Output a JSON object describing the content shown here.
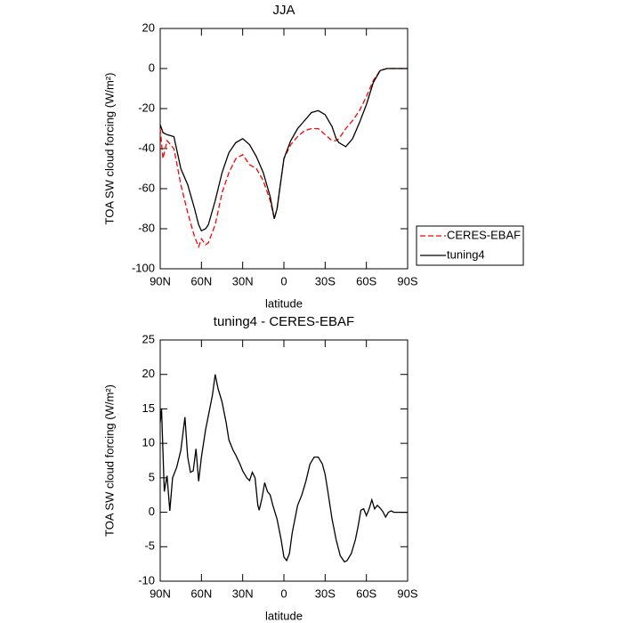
{
  "chart_data": [
    {
      "type": "line",
      "title": "JJA",
      "ylabel": "TOA SW cloud forcing (W/m²)",
      "xlabel": "latitude",
      "x": [
        90,
        88,
        85,
        80,
        75,
        70,
        65,
        62,
        60,
        57,
        55,
        50,
        45,
        40,
        35,
        30,
        25,
        20,
        15,
        10,
        7,
        5,
        0,
        -5,
        -10,
        -15,
        -20,
        -25,
        -30,
        -35,
        -38,
        -40,
        -45,
        -50,
        -55,
        -60,
        -65,
        -70,
        -75,
        -80,
        -85,
        -90
      ],
      "series": [
        {
          "name": "CERES-EBAF",
          "color": "#ff0000",
          "style": "dashed",
          "values": [
            -30,
            -45,
            -36,
            -40,
            -58,
            -72,
            -84,
            -89,
            -85,
            -88,
            -87,
            -78,
            -62,
            -52,
            -45,
            -43,
            -48,
            -50,
            -56,
            -66,
            -75,
            -70,
            -45,
            -38,
            -34,
            -31,
            -30,
            -30,
            -33,
            -36,
            -36,
            -35,
            -30,
            -26,
            -21,
            -14,
            -6,
            -1,
            0,
            0,
            0,
            0
          ]
        },
        {
          "name": "tuning4",
          "color": "#000000",
          "style": "solid",
          "values": [
            -28,
            -32,
            -33,
            -34,
            -50,
            -58,
            -70,
            -78,
            -81,
            -80,
            -78,
            -66,
            -52,
            -42,
            -37,
            -35,
            -38,
            -44,
            -52,
            -64,
            -75,
            -70,
            -45,
            -36,
            -30,
            -26,
            -22,
            -21,
            -23,
            -29,
            -35,
            -37,
            -39,
            -35,
            -27,
            -18,
            -7,
            -1,
            0,
            0,
            0,
            0
          ]
        }
      ],
      "xlim": [
        90,
        -90
      ],
      "xticks": [
        {
          "value": 90,
          "label": "90N"
        },
        {
          "value": 60,
          "label": "60N"
        },
        {
          "value": 30,
          "label": "30N"
        },
        0,
        {
          "value": -30,
          "label": "30S"
        },
        {
          "value": -60,
          "label": "60S"
        },
        {
          "value": -90,
          "label": "90S"
        }
      ],
      "ylim": [
        -100,
        20
      ],
      "yticks": [
        20,
        0,
        -20,
        -40,
        -60,
        -80,
        -100
      ],
      "legend": "right"
    },
    {
      "type": "line",
      "title": "tuning4 - CERES-EBAF",
      "ylabel": "TOA SW cloud forcing (W/m²)",
      "xlabel": "latitude",
      "x": [
        90,
        89,
        87,
        85,
        83,
        81,
        78,
        75,
        72,
        70,
        68,
        66,
        64,
        62,
        60,
        57,
        55,
        52,
        50,
        48,
        45,
        42,
        40,
        37,
        35,
        32,
        30,
        27,
        25,
        23,
        21,
        19,
        18,
        16,
        14,
        12,
        10,
        8,
        5,
        2,
        0,
        -2,
        -4,
        -6,
        -10,
        -13,
        -16,
        -19,
        -22,
        -25,
        -28,
        -30,
        -32,
        -35,
        -38,
        -41,
        -44,
        -46,
        -49,
        -52,
        -54,
        -56,
        -58,
        -60,
        -62,
        -64,
        -66,
        -68,
        -70,
        -72,
        -74,
        -76,
        -78,
        -80,
        -85,
        -90
      ],
      "values": [
        13,
        15,
        3,
        5.3,
        0.2,
        5,
        6.5,
        9,
        13.8,
        8,
        5.8,
        6,
        9.2,
        4.5,
        8,
        12,
        14,
        17,
        20,
        18,
        16,
        13,
        10.5,
        9,
        8.3,
        7,
        6,
        5,
        4.6,
        5.8,
        5,
        1,
        0.3,
        2,
        4.3,
        3,
        2.5,
        1,
        -1,
        -4,
        -6.5,
        -7,
        -6,
        -3,
        1,
        2.5,
        4.5,
        7,
        8,
        8,
        7,
        5.5,
        3,
        -1,
        -4,
        -6.3,
        -7.2,
        -7,
        -6,
        -4,
        -2,
        0.3,
        0.5,
        -0.5,
        0.5,
        1.8,
        0.5,
        1,
        0.6,
        0.1,
        -0.7,
        0,
        0.2,
        0,
        0,
        0
      ],
      "color": "#000000",
      "xlim": [
        90,
        -90
      ],
      "xticks": [
        {
          "value": 90,
          "label": "90N"
        },
        {
          "value": 60,
          "label": "60N"
        },
        {
          "value": 30,
          "label": "30N"
        },
        0,
        {
          "value": -30,
          "label": "30S"
        },
        {
          "value": -60,
          "label": "60S"
        },
        {
          "value": -90,
          "label": "90S"
        }
      ],
      "ylim": [
        -10,
        25
      ],
      "yticks": [
        25,
        20,
        15,
        10,
        5,
        0,
        -5,
        -10
      ]
    }
  ]
}
